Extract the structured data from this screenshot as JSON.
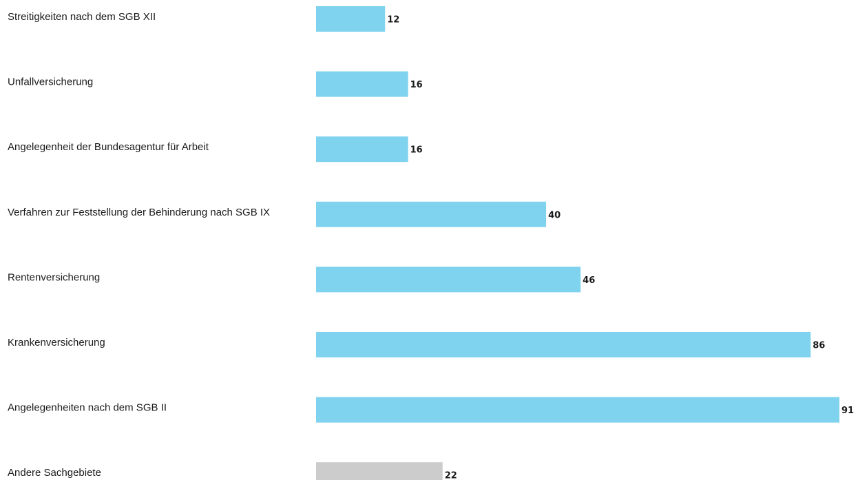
{
  "chart_data": {
    "type": "bar",
    "orientation": "horizontal",
    "categories": [
      "Streitigkeiten nach dem SGB XII",
      "Unfallversicherung",
      "Angelegenheit der Bundesagentur für Arbeit",
      "Verfahren zur Feststellung der Behinderung nach SGB IX",
      "Rentenversicherung",
      "Krankenversicherung",
      "Angelegenheiten nach dem SGB II",
      "Andere Sachgebiete"
    ],
    "values": [
      12,
      16,
      16,
      40,
      46,
      86,
      91,
      22
    ],
    "value_labels": [
      "12",
      "16",
      "16",
      "40",
      "46",
      "86",
      "91",
      "22"
    ],
    "bar_colors": [
      "#7fd3ee",
      "#7fd3ee",
      "#7fd3ee",
      "#7fd3ee",
      "#7fd3ee",
      "#7fd3ee",
      "#7fd3ee",
      "#cccccc"
    ],
    "title": "",
    "xlabel": "",
    "ylabel": "",
    "xlim": [
      0,
      91
    ],
    "grid": false,
    "legend": "none"
  }
}
